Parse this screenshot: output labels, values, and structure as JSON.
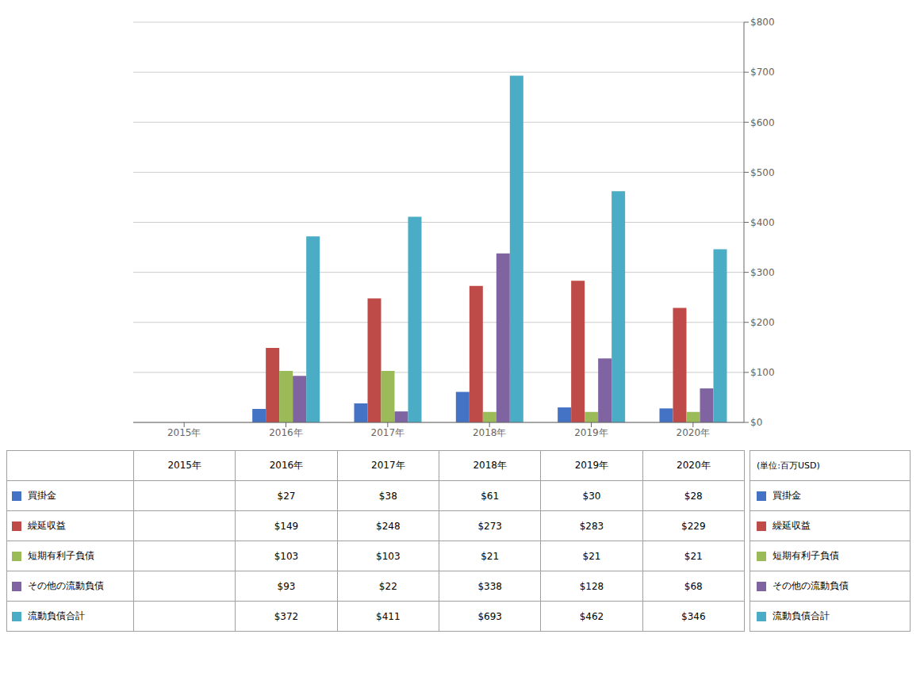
{
  "chart_data": {
    "type": "bar",
    "categories": [
      "2015年",
      "2016年",
      "2017年",
      "2018年",
      "2019年",
      "2020年"
    ],
    "series": [
      {
        "name": "買掛金",
        "color": "#4472C4",
        "values": [
          0,
          27,
          38,
          61,
          30,
          28
        ],
        "value_labels": [
          null,
          "$27",
          "$38",
          "$61",
          "$30",
          "$28"
        ]
      },
      {
        "name": "繰延収益",
        "color": "#BE4B48",
        "values": [
          0,
          149,
          248,
          273,
          283,
          229
        ],
        "value_labels": [
          null,
          "$149",
          "$248",
          "$273",
          "$283",
          "$229"
        ]
      },
      {
        "name": "短期有利子負債",
        "color": "#9BBB59",
        "values": [
          0,
          103,
          103,
          21,
          21,
          21
        ],
        "value_labels": [
          null,
          "$103",
          "$103",
          "$21",
          "$21",
          "$21"
        ]
      },
      {
        "name": "その他の流動負債",
        "color": "#8064A2",
        "values": [
          0,
          93,
          22,
          338,
          128,
          68
        ],
        "value_labels": [
          null,
          "$93",
          "$22",
          "$338",
          "$128",
          "$68"
        ]
      },
      {
        "name": "流動負債合計",
        "color": "#4BACC6",
        "values": [
          0,
          372,
          411,
          693,
          462,
          346
        ],
        "value_labels": [
          null,
          "$372",
          "$411",
          "$693",
          "$462",
          "$346"
        ]
      }
    ],
    "ylabel": "(単位:百万USD)",
    "ylim": [
      0,
      800
    ],
    "yticks": [
      {
        "value": 0,
        "label": "$0"
      },
      {
        "value": 100,
        "label": "$100"
      },
      {
        "value": 200,
        "label": "$200"
      },
      {
        "value": 300,
        "label": "$300"
      },
      {
        "value": 400,
        "label": "$400"
      },
      {
        "value": 500,
        "label": "$500"
      },
      {
        "value": 600,
        "label": "$600"
      },
      {
        "value": 700,
        "label": "$700"
      },
      {
        "value": 800,
        "label": "$800"
      }
    ],
    "grid": true,
    "legend": "right"
  }
}
